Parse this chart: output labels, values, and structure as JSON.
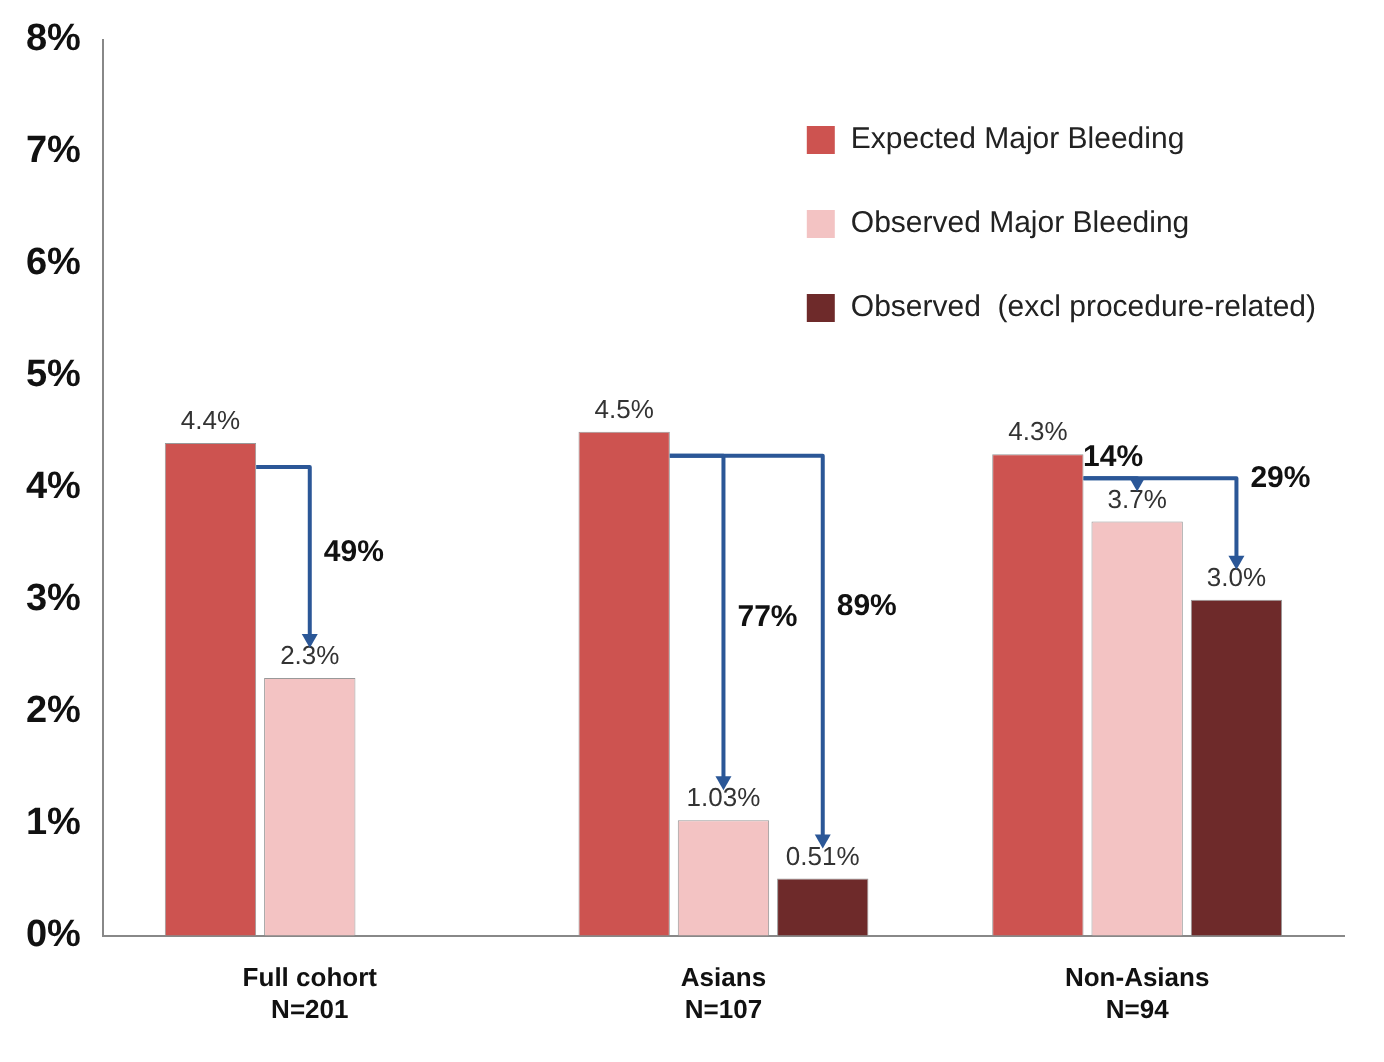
{
  "chart_data": {
    "type": "bar",
    "categories": [
      "Full cohort\nN=201",
      "Asians\nN=107",
      "Non-Asians\nN=94"
    ],
    "series": [
      {
        "name": "Expected Major Bleeding",
        "color": "#cd5350",
        "values": [
          4.4,
          4.5,
          4.3
        ],
        "value_labels": [
          "4.4%",
          "4.5%",
          "4.3%"
        ]
      },
      {
        "name": "Observed Major Bleeding",
        "color": "#f3c3c3",
        "values": [
          2.3,
          1.03,
          3.7
        ],
        "value_labels": [
          "2.3%",
          "1.03%",
          "3.7%"
        ]
      },
      {
        "name": "Observed  (excl procedure-related)",
        "color": "#6e2a2a",
        "values": [
          null,
          0.51,
          3.0
        ],
        "value_labels": [
          null,
          "0.51%",
          "3.0%"
        ]
      }
    ],
    "ylim": [
      0,
      8
    ],
    "yticks": [
      {
        "value": 0,
        "label": "0%"
      },
      {
        "value": 1,
        "label": "1%"
      },
      {
        "value": 2,
        "label": "2%"
      },
      {
        "value": 3,
        "label": "3%"
      },
      {
        "value": 4,
        "label": "4%"
      },
      {
        "value": 5,
        "label": "5%"
      },
      {
        "value": 6,
        "label": "6%"
      },
      {
        "value": 7,
        "label": "7%"
      },
      {
        "value": 8,
        "label": "8%"
      }
    ],
    "grid": false,
    "legend": "top right",
    "annotations": [
      "49%",
      "77%",
      "89%",
      "14%",
      "29%"
    ]
  }
}
